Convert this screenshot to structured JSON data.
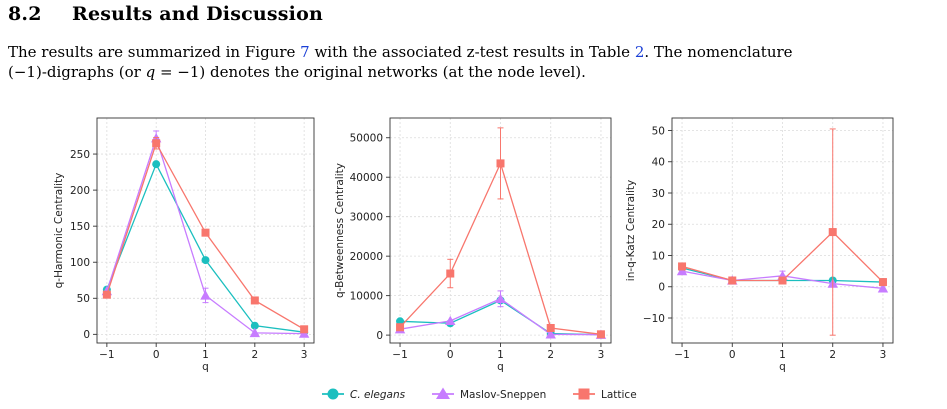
{
  "section": {
    "number": "8.2",
    "title": "Results and Discussion"
  },
  "paragraph": {
    "l1_a": "The results are summarized in Figure ",
    "l1_ref1": "7",
    "l1_b": " with the associated z-test results in Table ",
    "l1_ref2": "2",
    "l1_c": ".  The nomenclature",
    "l2_a": "(−1)-digraphs (or ",
    "l2_math": "q",
    "l2_b": " = −1) denotes the original networks (at the node level)."
  },
  "legend": {
    "entries": [
      {
        "label": "C. elegans",
        "color": "#1bbfbf",
        "marker": "circle",
        "italic": true
      },
      {
        "label": "Maslov-Sneppen",
        "color": "#c77cff",
        "marker": "triangle",
        "italic": false
      },
      {
        "label": "Lattice",
        "color": "#f8766d",
        "marker": "square",
        "italic": false
      }
    ]
  },
  "chart_data": [
    {
      "type": "line",
      "title": "",
      "xlabel": "q",
      "ylabel": "q-Harmonic Centrality",
      "x": [
        -1,
        0,
        1,
        2,
        3
      ],
      "xlim": [
        -1.2,
        3.2
      ],
      "ylim": [
        -12,
        300
      ],
      "yticks": [
        0,
        50,
        100,
        150,
        200,
        250
      ],
      "grid": true,
      "series": [
        {
          "name": "C. elegans",
          "values": [
            62,
            236,
            103,
            12,
            3
          ],
          "errors": [
            0,
            0,
            0,
            0,
            0
          ]
        },
        {
          "name": "Maslov-Sneppen",
          "values": [
            60,
            272,
            54,
            2,
            1
          ],
          "errors": [
            0,
            10,
            10,
            0,
            0
          ]
        },
        {
          "name": "Lattice",
          "values": [
            55,
            265,
            141,
            47,
            7
          ],
          "errors": [
            0,
            8,
            4,
            0,
            0
          ]
        }
      ]
    },
    {
      "type": "line",
      "title": "",
      "xlabel": "q",
      "ylabel": "q-Betweenness Centrality",
      "x": [
        -1,
        0,
        1,
        2,
        3
      ],
      "xlim": [
        -1.2,
        3.2
      ],
      "ylim": [
        -2000,
        55000
      ],
      "yticks": [
        0,
        10000,
        20000,
        30000,
        40000,
        50000
      ],
      "grid": true,
      "series": [
        {
          "name": "C. elegans",
          "values": [
            3500,
            3000,
            8800,
            400,
            100
          ],
          "errors": [
            0,
            0,
            0,
            0,
            0
          ]
        },
        {
          "name": "Maslov-Sneppen",
          "values": [
            1500,
            3600,
            9200,
            200,
            100
          ],
          "errors": [
            0,
            0,
            2000,
            0,
            0
          ]
        },
        {
          "name": "Lattice",
          "values": [
            2000,
            15600,
            43500,
            1800,
            200
          ],
          "errors": [
            0,
            3600,
            9000,
            0,
            0
          ]
        }
      ]
    },
    {
      "type": "line",
      "title": "",
      "xlabel": "q",
      "ylabel": "in-q-Katz Centrality",
      "x": [
        -1,
        0,
        1,
        2,
        3
      ],
      "xlim": [
        -1.2,
        3.2
      ],
      "ylim": [
        -18,
        54
      ],
      "yticks": [
        -10,
        0,
        10,
        20,
        30,
        40,
        50
      ],
      "grid": true,
      "series": [
        {
          "name": "C. elegans",
          "values": [
            6,
            2,
            2,
            2,
            1.5
          ],
          "errors": [
            0,
            0,
            0,
            0,
            0
          ]
        },
        {
          "name": "Maslov-Sneppen",
          "values": [
            5,
            2,
            3.5,
            1,
            -0.5
          ],
          "errors": [
            0,
            0,
            1.5,
            0,
            0
          ]
        },
        {
          "name": "Lattice",
          "values": [
            6.5,
            2,
            2,
            17.5,
            1.5
          ],
          "errors": [
            0,
            0,
            0,
            33,
            0
          ]
        }
      ]
    }
  ]
}
